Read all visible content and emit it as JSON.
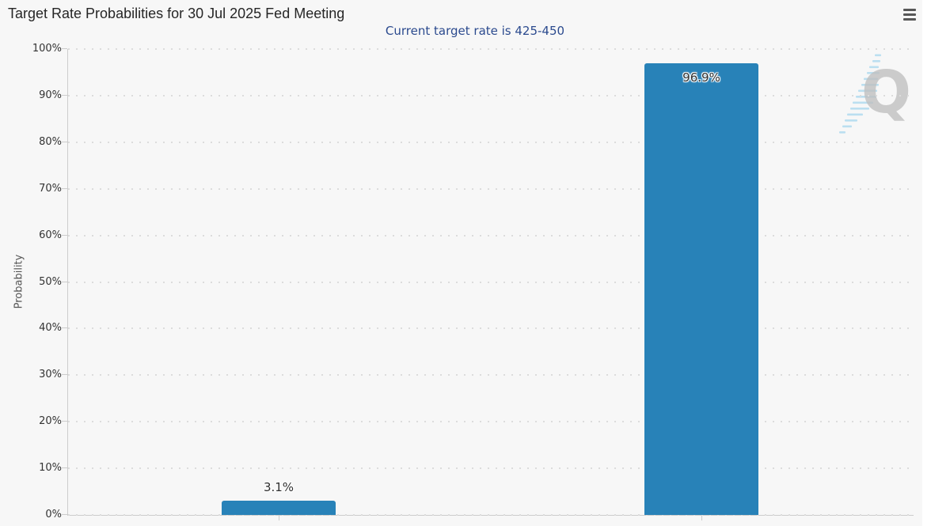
{
  "header": {
    "menu_tooltip": "Chart context menu"
  },
  "watermark": {
    "letter": "Q"
  },
  "colors": {
    "bar": "#2882b8",
    "subtitle": "#2b4a8e",
    "title": "#262626",
    "container_background": "#f7f7f7",
    "page_background": "#ffffff",
    "axis_line": "#cccccc",
    "grid_dot": "#dcdcdc",
    "tick_label": "#333333",
    "watermark_gray": "#b6b6b6",
    "watermark_blue": "#9fd4ee"
  },
  "chart_data": {
    "type": "bar",
    "title": "Target Rate Probabilities for 30 Jul 2025 Fed Meeting",
    "subtitle": "Current target rate is 425-450",
    "xlabel": "",
    "ylabel": "Probability",
    "values": [
      3.1,
      96.9
    ],
    "data_labels": [
      "3.1%",
      "96.9%"
    ],
    "yticks": [
      "0%",
      "10%",
      "20%",
      "30%",
      "40%",
      "50%",
      "60%",
      "70%",
      "80%",
      "90%",
      "100%"
    ],
    "ylim": [
      0,
      100
    ],
    "ytick_step": 10,
    "grid": "dotted-horizontal",
    "legend": "none",
    "x_axis_labels_visible": false
  }
}
